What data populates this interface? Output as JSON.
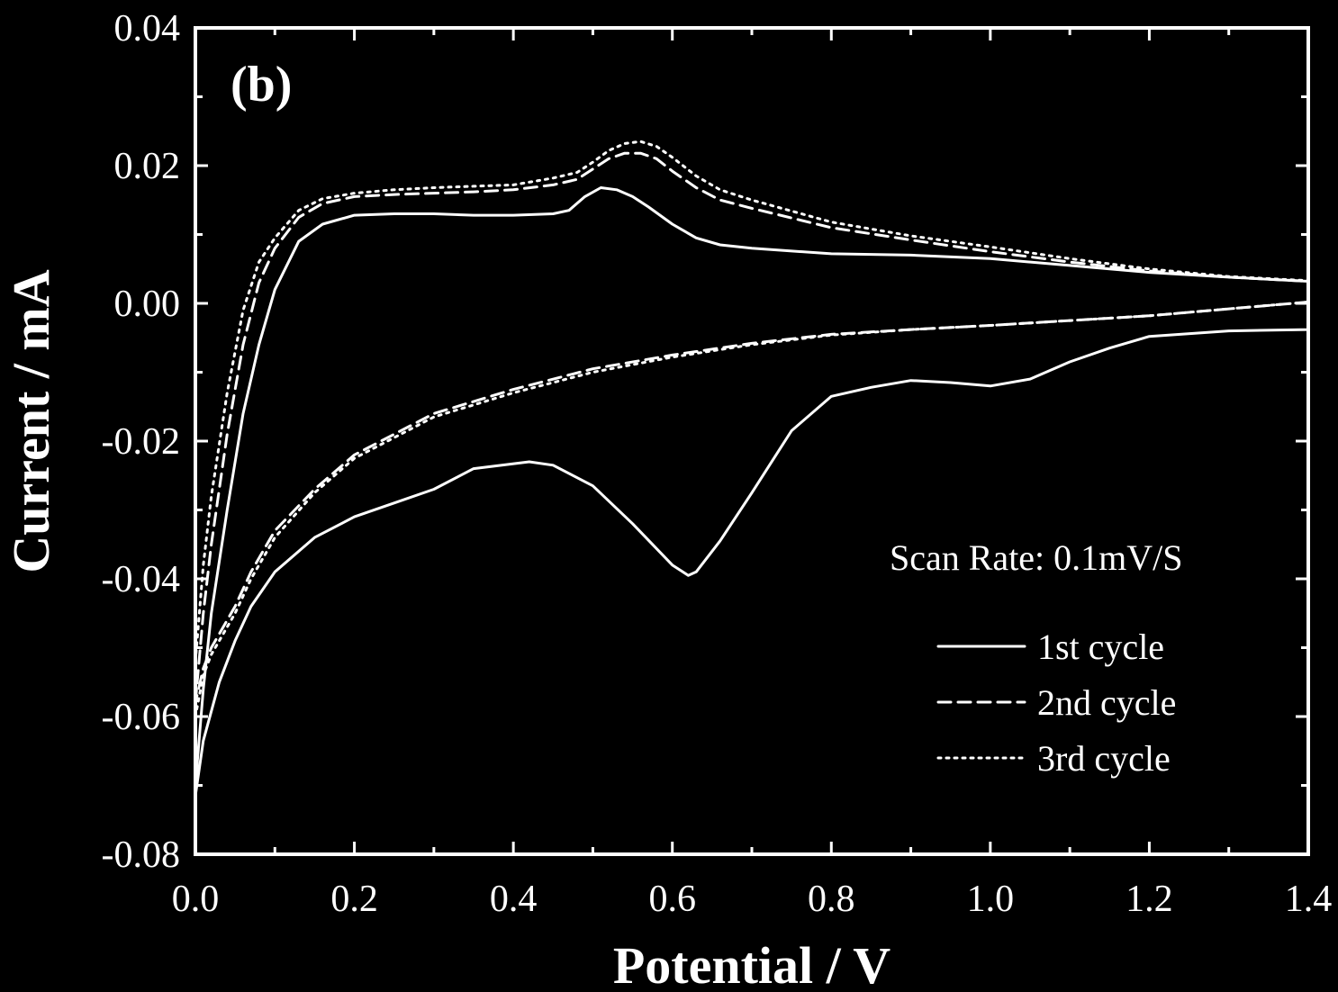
{
  "chart_data": {
    "type": "line",
    "panel_label": "(b)",
    "xlabel": "Potential / V",
    "ylabel": "Current / mA",
    "xlim": [
      0.0,
      1.4
    ],
    "ylim": [
      -0.08,
      0.04
    ],
    "xticks": [
      "0.0",
      "0.2",
      "0.4",
      "0.6",
      "0.8",
      "1.0",
      "1.2",
      "1.4"
    ],
    "yticks": [
      "0.04",
      "0.02",
      "0.00",
      "-0.02",
      "-0.04",
      "-0.06",
      "-0.08"
    ],
    "annotation": "Scan Rate: 0.1mV/S",
    "legend_position": "bottom-right",
    "grid": false,
    "series": [
      {
        "name": "1st cycle",
        "style": "solid",
        "x": [
          0.0,
          0.01,
          0.02,
          0.04,
          0.06,
          0.08,
          0.1,
          0.13,
          0.16,
          0.2,
          0.25,
          0.3,
          0.35,
          0.4,
          0.45,
          0.47,
          0.49,
          0.51,
          0.53,
          0.55,
          0.57,
          0.6,
          0.63,
          0.66,
          0.7,
          0.8,
          0.9,
          1.0,
          1.1,
          1.2,
          1.3,
          1.4,
          1.4,
          1.3,
          1.2,
          1.15,
          1.1,
          1.05,
          1.0,
          0.95,
          0.9,
          0.85,
          0.8,
          0.75,
          0.7,
          0.66,
          0.63,
          0.62,
          0.6,
          0.55,
          0.5,
          0.45,
          0.42,
          0.35,
          0.3,
          0.25,
          0.2,
          0.15,
          0.1,
          0.07,
          0.05,
          0.03,
          0.01,
          0.0
        ],
        "y": [
          -0.07,
          -0.056,
          -0.045,
          -0.03,
          -0.016,
          -0.006,
          0.002,
          0.009,
          0.0115,
          0.0128,
          0.013,
          0.013,
          0.0128,
          0.0128,
          0.013,
          0.0135,
          0.0155,
          0.0168,
          0.0165,
          0.0155,
          0.014,
          0.0115,
          0.0095,
          0.0085,
          0.008,
          0.0072,
          0.007,
          0.0065,
          0.0055,
          0.0045,
          0.0038,
          0.0032,
          -0.0038,
          -0.004,
          -0.0048,
          -0.0065,
          -0.0085,
          -0.011,
          -0.012,
          -0.0115,
          -0.0112,
          -0.0122,
          -0.0135,
          -0.0185,
          -0.0275,
          -0.0345,
          -0.039,
          -0.0395,
          -0.038,
          -0.032,
          -0.0265,
          -0.0235,
          -0.023,
          -0.024,
          -0.027,
          -0.029,
          -0.031,
          -0.034,
          -0.039,
          -0.044,
          -0.049,
          -0.055,
          -0.0635,
          -0.0715
        ]
      },
      {
        "name": "2nd cycle",
        "style": "dashed",
        "x": [
          0.0,
          0.01,
          0.02,
          0.04,
          0.06,
          0.08,
          0.1,
          0.13,
          0.16,
          0.2,
          0.25,
          0.3,
          0.35,
          0.4,
          0.45,
          0.48,
          0.5,
          0.52,
          0.54,
          0.56,
          0.58,
          0.6,
          0.63,
          0.66,
          0.7,
          0.8,
          0.9,
          1.0,
          1.1,
          1.2,
          1.3,
          1.4,
          1.4,
          1.3,
          1.2,
          1.1,
          1.0,
          0.9,
          0.8,
          0.7,
          0.6,
          0.5,
          0.4,
          0.3,
          0.25,
          0.2,
          0.15,
          0.1,
          0.07,
          0.05,
          0.03,
          0.02,
          0.01,
          0.0
        ],
        "y": [
          -0.058,
          -0.045,
          -0.035,
          -0.019,
          -0.006,
          0.003,
          0.008,
          0.0125,
          0.0145,
          0.0155,
          0.0158,
          0.016,
          0.0162,
          0.0165,
          0.0172,
          0.018,
          0.0195,
          0.021,
          0.0218,
          0.0218,
          0.021,
          0.0192,
          0.0168,
          0.015,
          0.0138,
          0.011,
          0.0092,
          0.0075,
          0.006,
          0.0047,
          0.0038,
          0.0032,
          0.0002,
          -0.0008,
          -0.0018,
          -0.0025,
          -0.0032,
          -0.0038,
          -0.0045,
          -0.0058,
          -0.0075,
          -0.0095,
          -0.0125,
          -0.016,
          -0.019,
          -0.022,
          -0.027,
          -0.033,
          -0.039,
          -0.044,
          -0.048,
          -0.05,
          -0.053,
          -0.058
        ]
      },
      {
        "name": "3rd cycle",
        "style": "dotted",
        "x": [
          0.0,
          0.01,
          0.02,
          0.04,
          0.06,
          0.08,
          0.1,
          0.13,
          0.16,
          0.2,
          0.25,
          0.3,
          0.35,
          0.4,
          0.45,
          0.48,
          0.5,
          0.52,
          0.54,
          0.56,
          0.58,
          0.6,
          0.63,
          0.66,
          0.7,
          0.8,
          0.9,
          1.0,
          1.1,
          1.2,
          1.3,
          1.4,
          1.4,
          1.3,
          1.2,
          1.1,
          1.0,
          0.9,
          0.8,
          0.7,
          0.6,
          0.5,
          0.4,
          0.3,
          0.25,
          0.2,
          0.15,
          0.1,
          0.07,
          0.05,
          0.03,
          0.02,
          0.01,
          0.0
        ],
        "y": [
          -0.052,
          -0.038,
          -0.028,
          -0.013,
          -0.001,
          0.006,
          0.0095,
          0.0135,
          0.0152,
          0.016,
          0.0165,
          0.0168,
          0.017,
          0.0172,
          0.0182,
          0.019,
          0.0205,
          0.0222,
          0.0232,
          0.0235,
          0.0228,
          0.0212,
          0.0185,
          0.0165,
          0.015,
          0.0118,
          0.0098,
          0.0082,
          0.0065,
          0.005,
          0.0039,
          0.0033,
          0.0002,
          -0.0008,
          -0.0018,
          -0.0025,
          -0.0032,
          -0.0038,
          -0.0046,
          -0.006,
          -0.0078,
          -0.01,
          -0.013,
          -0.0165,
          -0.0195,
          -0.0225,
          -0.0275,
          -0.034,
          -0.04,
          -0.045,
          -0.049,
          -0.051,
          -0.054,
          -0.06
        ]
      }
    ]
  }
}
